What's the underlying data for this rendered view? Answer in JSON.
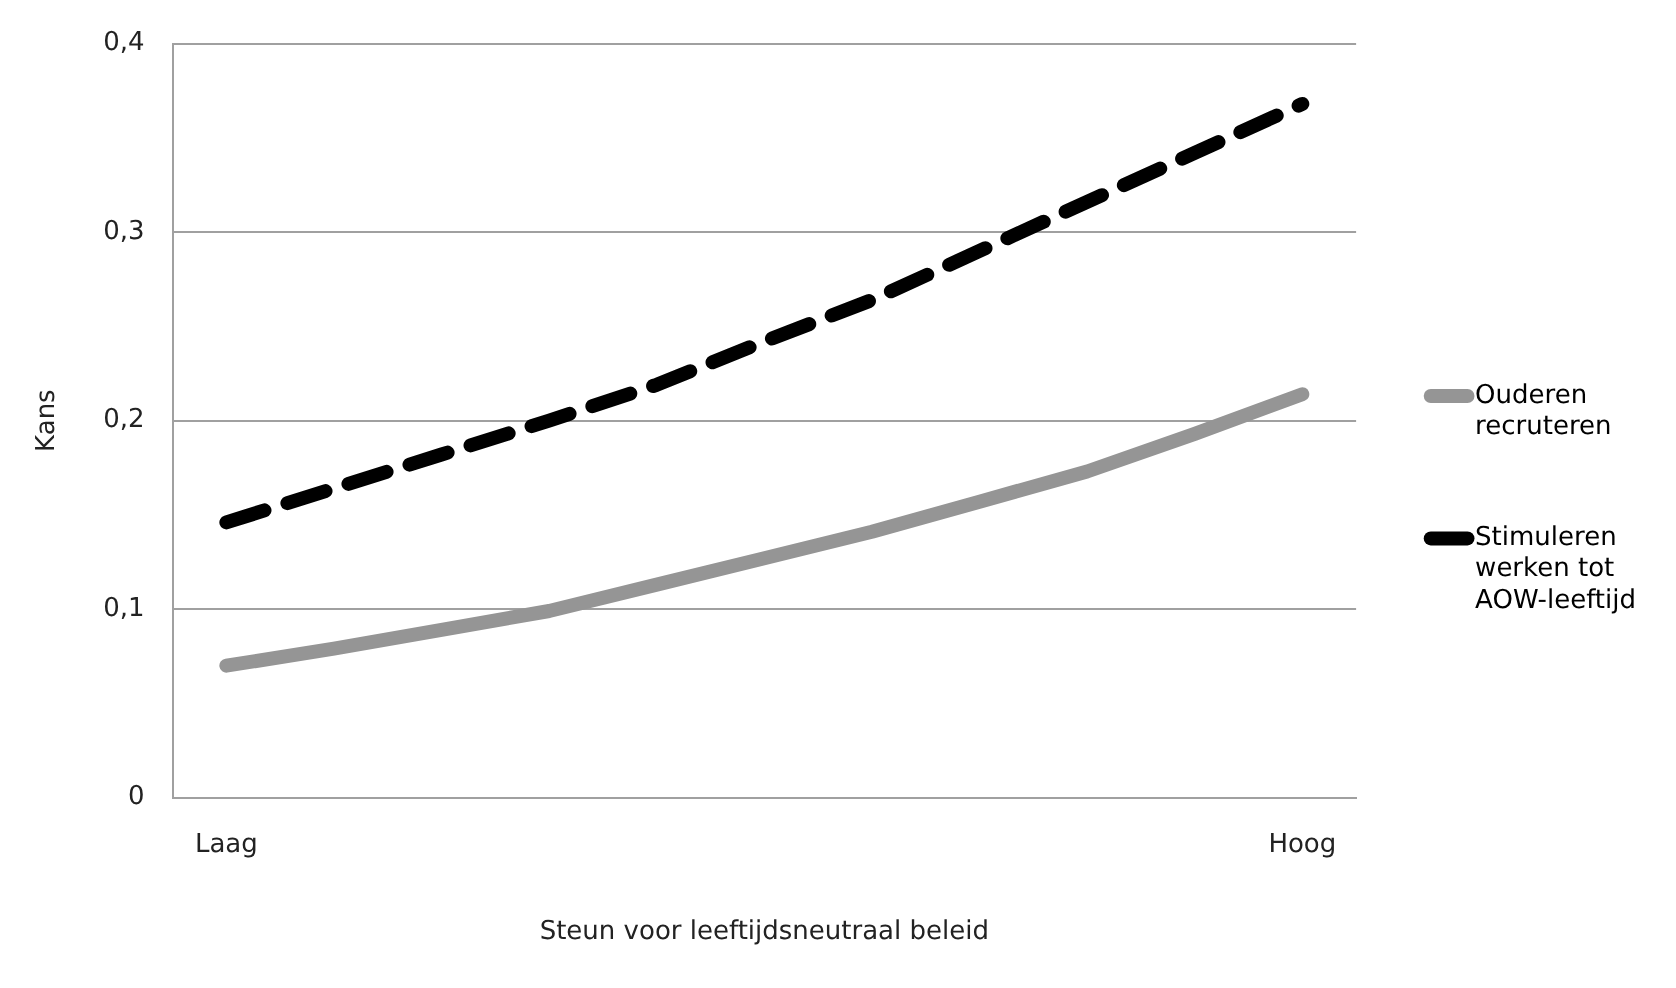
{
  "chart_data": {
    "type": "line",
    "xlabel": "Steun voor leeftijdsneutraal beleid",
    "ylabel": "Kans",
    "categories": [
      "Laag",
      null,
      null,
      null,
      null,
      null,
      null,
      null,
      null,
      null,
      "Hoog"
    ],
    "ylim": [
      0,
      0.4
    ],
    "yticks": [
      {
        "value": 0,
        "label": "0"
      },
      {
        "value": 0.1,
        "label": "0,1"
      },
      {
        "value": 0.2,
        "label": "0,2"
      },
      {
        "value": 0.3,
        "label": "0,3"
      },
      {
        "value": 0.4,
        "label": "0,4"
      }
    ],
    "grid": "y",
    "legend": "right",
    "marker": "none",
    "series": [
      {
        "name": "Ouderen recruteren",
        "color": "#959595",
        "line_style": "solid",
        "values": [
          0.07,
          0.079,
          0.089,
          0.099,
          0.113,
          0.127,
          0.141,
          0.157,
          0.173,
          0.193,
          0.214
        ]
      },
      {
        "name": "Stimuleren werken tot AOW-leeftijd",
        "color": "#000000",
        "line_style": "dashed",
        "values": [
          0.146,
          0.164,
          0.182,
          0.2,
          0.219,
          0.242,
          0.264,
          0.29,
          0.316,
          0.342,
          0.368
        ]
      }
    ]
  }
}
